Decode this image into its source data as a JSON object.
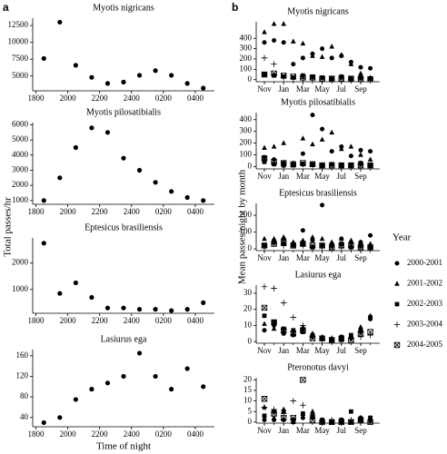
{
  "panels": [
    {
      "label": "a",
      "y_label": "Total passes/hr",
      "x_label": "Time of night"
    },
    {
      "label": "b",
      "y_label": "Mean passes/night by month",
      "legend": {
        "title": "Year",
        "entries": [
          {
            "name": "2000-2001",
            "marker": "circle"
          },
          {
            "name": "2001-2002",
            "marker": "triangle"
          },
          {
            "name": "2002-2003",
            "marker": "square"
          },
          {
            "name": "2003-2004",
            "marker": "plus"
          },
          {
            "name": "2004-2005",
            "marker": "boxed-x"
          }
        ]
      }
    }
  ],
  "chart_data": [
    {
      "type": "scatter",
      "title": "Myotis nigricans",
      "color": "#000000",
      "x": [
        18.5,
        19.5,
        20.5,
        21.5,
        22.5,
        23.5,
        24.5,
        25.5,
        26.5,
        27.5,
        28.5
      ],
      "values": [
        7600,
        13000,
        6600,
        4800,
        3900,
        4100,
        5100,
        5800,
        5100,
        3900,
        3200
      ],
      "xlim": [
        17.8,
        29.2
      ],
      "xticks": [
        {
          "value": 18,
          "label": "1800"
        },
        {
          "value": 20,
          "label": "2000"
        },
        {
          "value": 22,
          "label": "2200"
        },
        {
          "value": 24,
          "label": "2400"
        },
        {
          "value": 26,
          "label": "0200"
        },
        {
          "value": 28,
          "label": "0400"
        }
      ],
      "ylim": [
        2800,
        13600
      ],
      "yticks": [
        5000,
        7500,
        10000,
        12500
      ]
    },
    {
      "type": "scatter",
      "title": "Myotis pilosatibialis",
      "color": "#000000",
      "x": [
        18.5,
        19.5,
        20.5,
        21.5,
        22.5,
        23.5,
        24.5,
        25.5,
        26.5,
        27.5,
        28.5
      ],
      "values": [
        1000,
        2500,
        4500,
        5800,
        5500,
        3800,
        3000,
        2200,
        1600,
        1200,
        1000
      ],
      "xlim": [
        17.8,
        29.2
      ],
      "xticks": [
        {
          "value": 18,
          "label": "1800"
        },
        {
          "value": 20,
          "label": "2000"
        },
        {
          "value": 22,
          "label": "2200"
        },
        {
          "value": 24,
          "label": "2400"
        },
        {
          "value": 26,
          "label": "0200"
        },
        {
          "value": 28,
          "label": "0400"
        }
      ],
      "ylim": [
        750,
        6150
      ],
      "yticks": [
        1000,
        2000,
        3000,
        4000,
        5000,
        6000
      ]
    },
    {
      "type": "scatter",
      "title": "Eptesicus brasiliensis",
      "color": "#000000",
      "x": [
        18.5,
        19.5,
        20.5,
        21.5,
        22.5,
        23.5,
        24.5,
        25.5,
        26.5,
        27.5,
        28.5
      ],
      "values": [
        2750,
        850,
        1250,
        700,
        300,
        300,
        250,
        250,
        200,
        250,
        500
      ],
      "xlim": [
        17.8,
        29.2
      ],
      "xticks": [
        {
          "value": 18,
          "label": "1800"
        },
        {
          "value": 20,
          "label": "2000"
        },
        {
          "value": 22,
          "label": "2200"
        },
        {
          "value": 24,
          "label": "2400"
        },
        {
          "value": 26,
          "label": "0200"
        },
        {
          "value": 28,
          "label": "0400"
        }
      ],
      "ylim": [
        100,
        2950
      ],
      "yticks": [
        1000,
        2000
      ]
    },
    {
      "type": "scatter",
      "title": "Lasiurus ega",
      "color": "#000000",
      "x": [
        18.5,
        19.5,
        20.5,
        21.5,
        22.5,
        23.5,
        24.5,
        25.5,
        26.5,
        27.5,
        28.5
      ],
      "values": [
        30,
        40,
        75,
        95,
        107,
        120,
        165,
        120,
        95,
        135,
        100
      ],
      "xlim": [
        17.8,
        29.2
      ],
      "xticks": [
        {
          "value": 18,
          "label": "1800"
        },
        {
          "value": 20,
          "label": "2000"
        },
        {
          "value": 22,
          "label": "2200"
        },
        {
          "value": 24,
          "label": "2400"
        },
        {
          "value": 26,
          "label": "0200"
        },
        {
          "value": 28,
          "label": "0400"
        }
      ],
      "ylim": [
        22,
        172
      ],
      "yticks": [
        40,
        80,
        120,
        160
      ]
    },
    {
      "type": "category-scatter",
      "title": "Myotis nigricans",
      "categories": [
        "Nov",
        null,
        "Jan",
        null,
        "Mar",
        null,
        "May",
        null,
        "Jul",
        null,
        "Sep",
        null
      ],
      "ylim": [
        -20,
        560
      ],
      "yticks": [
        0,
        100,
        200,
        300,
        400
      ],
      "series": [
        {
          "marker": "circle",
          "values": [
            360,
            380,
            360,
            150,
            210,
            250,
            300,
            210,
            230,
            170,
            120,
            110
          ]
        },
        {
          "marker": "triangle",
          "values": [
            460,
            540,
            540,
            370,
            350,
            230,
            220,
            320,
            240,
            150,
            60,
            20
          ]
        },
        {
          "marker": "square",
          "values": [
            50,
            40,
            30,
            20,
            40,
            30,
            20,
            10,
            30,
            10,
            20,
            10
          ]
        },
        {
          "marker": "plus",
          "values": [
            210,
            150,
            20,
            10,
            10,
            5,
            5,
            5,
            5,
            5,
            5,
            5
          ]
        },
        {
          "marker": "boxed-x",
          "values": [
            50,
            60,
            40,
            30,
            20,
            20,
            10,
            10,
            10,
            10,
            5,
            5
          ]
        }
      ]
    },
    {
      "type": "category-scatter",
      "title": "Myotis pilosatibialis",
      "categories": [
        "Nov",
        null,
        "Jan",
        null,
        "Mar",
        null,
        "May",
        null,
        "Jul",
        null,
        "Sep",
        null
      ],
      "ylim": [
        -20,
        460
      ],
      "yticks": [
        0,
        100,
        200,
        300,
        400
      ],
      "series": [
        {
          "marker": "circle",
          "values": [
            80,
            60,
            30,
            20,
            110,
            440,
            320,
            130,
            170,
            90,
            140,
            130
          ]
        },
        {
          "marker": "triangle",
          "values": [
            160,
            170,
            200,
            30,
            240,
            190,
            230,
            290,
            150,
            170,
            100,
            60
          ]
        },
        {
          "marker": "square",
          "values": [
            40,
            20,
            10,
            10,
            20,
            20,
            10,
            20,
            10,
            10,
            30,
            10
          ]
        },
        {
          "marker": "plus",
          "values": [
            60,
            30,
            10,
            20,
            20,
            10,
            10,
            10,
            10,
            10,
            10,
            10
          ]
        },
        {
          "marker": "boxed-x",
          "values": [
            70,
            40,
            30,
            20,
            30,
            20,
            10,
            10,
            10,
            10,
            10,
            10
          ]
        }
      ]
    },
    {
      "type": "category-scatter",
      "title": "Eptesicus brasiliensis",
      "categories": [
        "Nov",
        null,
        "Jan",
        null,
        "Mar",
        null,
        "May",
        null,
        "Jul",
        null,
        "Sep",
        null
      ],
      "ylim": [
        -10,
        270
      ],
      "yticks": [
        0,
        100,
        200
      ],
      "series": [
        {
          "marker": "circle",
          "values": [
            20,
            50,
            60,
            30,
            110,
            50,
            260,
            30,
            60,
            40,
            40,
            80
          ]
        },
        {
          "marker": "triangle",
          "values": [
            60,
            60,
            70,
            40,
            50,
            70,
            60,
            40,
            60,
            50,
            40,
            30
          ]
        },
        {
          "marker": "square",
          "values": [
            20,
            40,
            30,
            20,
            30,
            10,
            20,
            20,
            30,
            10,
            20,
            10
          ]
        },
        {
          "marker": "plus",
          "values": [
            10,
            30,
            20,
            20,
            20,
            10,
            10,
            10,
            10,
            10,
            10,
            10
          ]
        },
        {
          "marker": "boxed-x",
          "values": [
            20,
            30,
            40,
            20,
            30,
            20,
            20,
            10,
            20,
            20,
            10,
            10
          ]
        }
      ]
    },
    {
      "type": "category-scatter",
      "title": "Lasiurus ega",
      "categories": [
        "Nov",
        null,
        "Jan",
        null,
        "Mar",
        null,
        "May",
        null,
        "Jul",
        null,
        "Sep",
        null
      ],
      "ylim": [
        -1,
        35
      ],
      "yticks": [
        0,
        10,
        20,
        30
      ],
      "series": [
        {
          "marker": "circle",
          "values": [
            7,
            10,
            5,
            4,
            8,
            3,
            2,
            1,
            3,
            2,
            6,
            14
          ]
        },
        {
          "marker": "triangle",
          "values": [
            11,
            8,
            6,
            5,
            9,
            5,
            3,
            2,
            1,
            3,
            9,
            16
          ]
        },
        {
          "marker": "square",
          "values": [
            16,
            12,
            8,
            7,
            6,
            4,
            2,
            1,
            2,
            4,
            7,
            15
          ]
        },
        {
          "marker": "plus",
          "values": [
            34,
            33,
            24,
            15,
            10,
            3,
            1,
            2,
            1,
            2,
            3,
            4
          ]
        },
        {
          "marker": "boxed-x",
          "values": [
            21,
            12,
            7,
            5,
            7,
            2,
            2,
            1,
            2,
            1,
            5,
            6
          ]
        }
      ]
    },
    {
      "type": "category-scatter",
      "title": "Pteronotus davyi",
      "categories": [
        "Nov",
        null,
        "Jan",
        null,
        "Mar",
        null,
        "May",
        null,
        "Jul",
        null,
        "Sep",
        null
      ],
      "ylim": [
        -0.5,
        21
      ],
      "yticks": [
        0,
        5,
        10,
        15,
        20
      ],
      "series": [
        {
          "marker": "circle",
          "values": [
            1,
            1,
            1,
            0,
            2,
            2,
            0,
            0,
            0,
            0,
            2,
            1
          ]
        },
        {
          "marker": "triangle",
          "values": [
            7,
            2,
            6,
            0,
            4,
            5,
            1,
            0,
            1,
            0,
            2,
            2
          ]
        },
        {
          "marker": "square",
          "values": [
            3,
            5,
            5,
            1,
            4,
            3,
            1,
            0,
            1,
            5,
            1,
            2
          ]
        },
        {
          "marker": "plus",
          "values": [
            7,
            6,
            4,
            10,
            8,
            3,
            0,
            1,
            0,
            1,
            1,
            0
          ]
        },
        {
          "marker": "boxed-x",
          "values": [
            11,
            4,
            2,
            2,
            20,
            1,
            0,
            0,
            0,
            0,
            1,
            0
          ]
        }
      ]
    }
  ]
}
